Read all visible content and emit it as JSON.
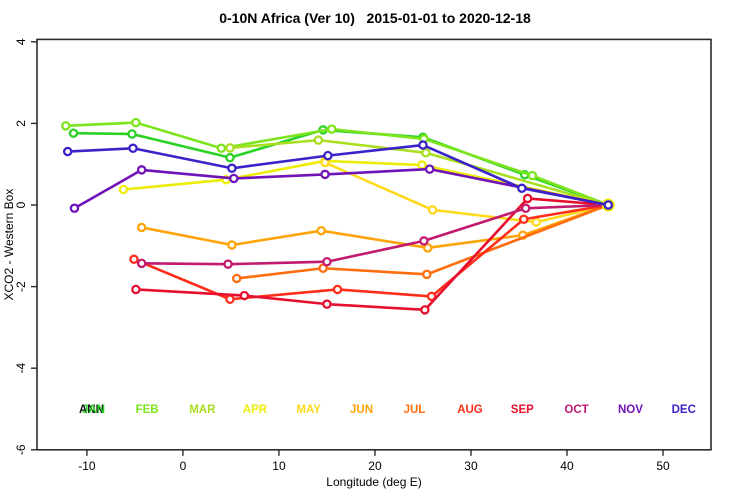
{
  "chart_data": {
    "type": "line",
    "title": "0-10N Africa (Ver 10)   2015-01-01 to 2020-12-18",
    "xlabel": "Longitude (deg E)",
    "ylabel": "XCO2 - Western Box",
    "xlim": [
      -15.2,
      55
    ],
    "ylim": [
      -6,
      4.06
    ],
    "xticks": [
      -10,
      0,
      10,
      20,
      30,
      40,
      50
    ],
    "yticks": [
      4,
      2,
      0,
      -2,
      -4,
      -6
    ],
    "grid": false,
    "marker": "open-circle",
    "legend_position": "bottom-inside-row",
    "annual_overlay_label": "ANN",
    "annual_overlay_color": "#111111",
    "convergence_point": [
      44.3,
      0.0
    ],
    "series": [
      {
        "name": "JAN",
        "color": "#2BD226",
        "points": [
          [
            -11.4,
            1.76
          ],
          [
            -5.3,
            1.74
          ],
          [
            4.9,
            1.16
          ],
          [
            14.6,
            1.84
          ],
          [
            25.0,
            1.66
          ],
          [
            35.6,
            0.74
          ],
          [
            44.3,
            0
          ]
        ]
      },
      {
        "name": "FEB",
        "color": "#7CE51E",
        "points": [
          [
            -12.2,
            1.94
          ],
          [
            -4.9,
            2.02
          ],
          [
            4.0,
            1.39
          ],
          [
            15.5,
            1.86
          ],
          [
            25.1,
            1.62
          ],
          [
            36.4,
            0.72
          ],
          [
            44.3,
            0
          ]
        ]
      },
      {
        "name": "MAR",
        "color": "#A9DF1F",
        "points": [
          [
            4.9,
            1.4
          ],
          [
            14.1,
            1.59
          ],
          [
            25.3,
            1.28
          ],
          [
            44.3,
            0
          ]
        ]
      },
      {
        "name": "APR",
        "color": "#EDED05",
        "points": [
          [
            -6.2,
            0.38
          ],
          [
            4.5,
            0.62
          ],
          [
            14.8,
            1.08
          ],
          [
            24.9,
            0.98
          ],
          [
            44.3,
            0
          ]
        ]
      },
      {
        "name": "MAY",
        "color": "#FFD91C",
        "points": [
          [
            14.8,
            1.04
          ],
          [
            26.0,
            -0.12
          ],
          [
            36.8,
            -0.42
          ],
          [
            44.3,
            0
          ]
        ]
      },
      {
        "name": "JUN",
        "color": "#FFA408",
        "points": [
          [
            -4.3,
            -0.55
          ],
          [
            5.1,
            -0.98
          ],
          [
            14.4,
            -0.63
          ],
          [
            25.5,
            -1.05
          ],
          [
            35.4,
            -0.74
          ],
          [
            44.3,
            0
          ]
        ]
      },
      {
        "name": "JUL",
        "color": "#FF6D0C",
        "points": [
          [
            5.6,
            -1.8
          ],
          [
            14.6,
            -1.55
          ],
          [
            25.4,
            -1.7
          ],
          [
            44.3,
            0
          ]
        ]
      },
      {
        "name": "AUG",
        "color": "#FF2D1A",
        "points": [
          [
            -5.1,
            -1.33
          ],
          [
            4.9,
            -2.31
          ],
          [
            16.1,
            -2.07
          ],
          [
            25.9,
            -2.24
          ],
          [
            35.5,
            -0.35
          ],
          [
            44.3,
            0
          ]
        ]
      },
      {
        "name": "SEP",
        "color": "#E60F2E",
        "points": [
          [
            -4.9,
            -2.07
          ],
          [
            6.4,
            -2.22
          ],
          [
            15.0,
            -2.43
          ],
          [
            25.2,
            -2.57
          ],
          [
            35.9,
            0.16
          ],
          [
            44.3,
            0
          ]
        ]
      },
      {
        "name": "OCT",
        "color": "#C21A6F",
        "points": [
          [
            -4.3,
            -1.43
          ],
          [
            4.7,
            -1.45
          ],
          [
            15.0,
            -1.39
          ],
          [
            25.1,
            -0.88
          ],
          [
            35.7,
            -0.08
          ],
          [
            44.3,
            0
          ]
        ]
      },
      {
        "name": "NOV",
        "color": "#7013B8",
        "points": [
          [
            -11.3,
            -0.08
          ],
          [
            -4.3,
            0.86
          ],
          [
            5.3,
            0.65
          ],
          [
            14.8,
            0.75
          ],
          [
            25.7,
            0.88
          ],
          [
            44.3,
            0
          ]
        ]
      },
      {
        "name": "DEC",
        "color": "#3B22C9",
        "points": [
          [
            -12.0,
            1.31
          ],
          [
            -5.2,
            1.39
          ],
          [
            5.1,
            0.9
          ],
          [
            15.1,
            1.21
          ],
          [
            25.0,
            1.47
          ],
          [
            35.3,
            0.41
          ],
          [
            44.3,
            0
          ]
        ]
      }
    ]
  }
}
